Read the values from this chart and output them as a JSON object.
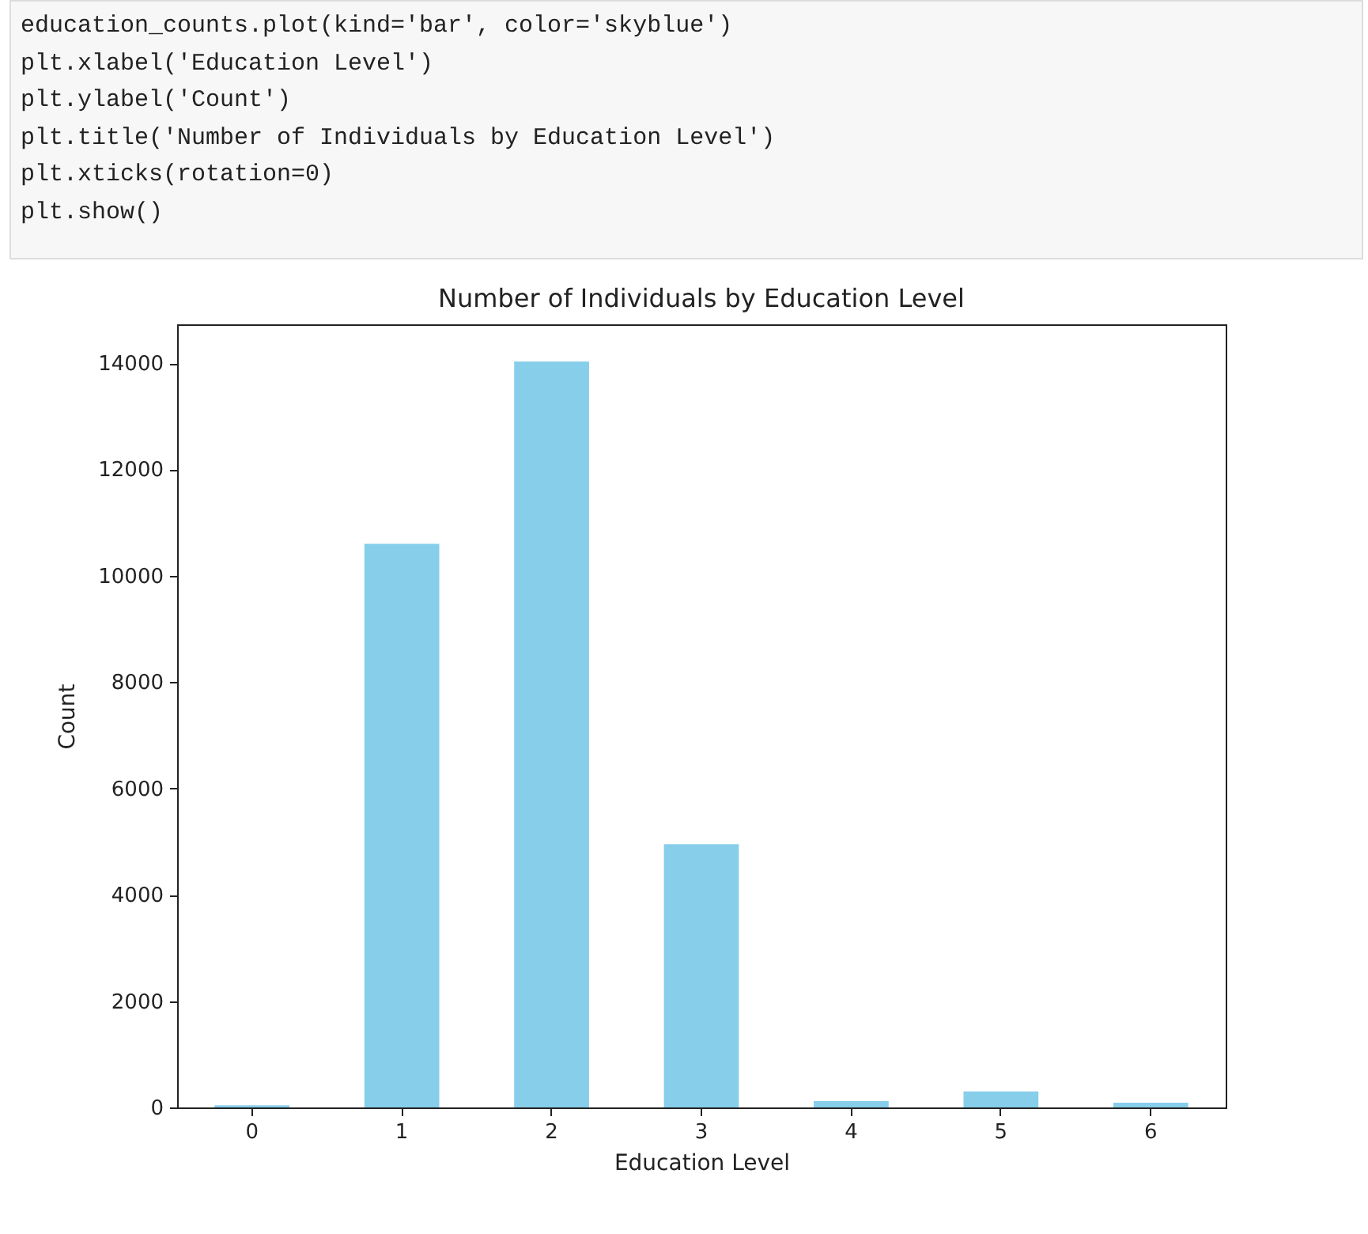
{
  "chart_data": {
    "type": "bar",
    "title": "Number of Individuals by Education Level",
    "xlabel": "Education Level",
    "ylabel": "Count",
    "categories": [
      "0",
      "1",
      "2",
      "3",
      "4",
      "5",
      "6"
    ],
    "values": [
      40,
      10600,
      14030,
      4950,
      120,
      300,
      90
    ],
    "color": "#87ceeb",
    "ylim": [
      0,
      14730
    ],
    "yticks": [
      0,
      2000,
      4000,
      6000,
      8000,
      10000,
      12000,
      14000
    ],
    "grid": false,
    "annotations": [
      "education_counts.plot(kind='bar', color='skyblue')",
      "plt.xlabel('Education Level')",
      "plt.ylabel('Count')",
      "plt.title('Number of Individuals by Education Level')",
      "plt.xticks(rotation=0)",
      "plt.show()"
    ]
  }
}
